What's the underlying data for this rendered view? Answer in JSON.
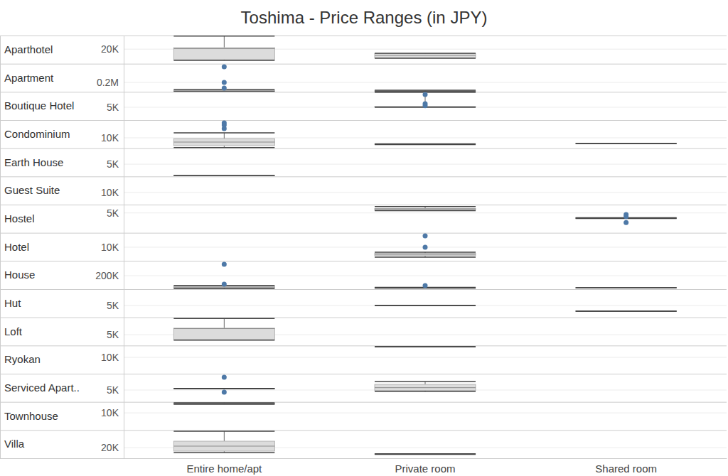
{
  "chart_data": {
    "type": "box",
    "title": "Toshima - Price Ranges (in JPY)",
    "categories": [
      "Entire home/apt",
      "Private room",
      "Shared room"
    ],
    "color": "#4e79a7",
    "grid": true,
    "panels": [
      {
        "name": "Aparthotel",
        "ylim": [
          4000,
          35000
        ],
        "yticks": [
          {
            "value": 20000,
            "label": "20K"
          }
        ],
        "boxes": [
          {
            "min": 7700,
            "q1": 8500,
            "median": 20500,
            "q3": 21700,
            "max": 34500
          },
          {
            "min": 10000,
            "q1": 10500,
            "median": 13100,
            "q3": 15000,
            "max": 15500
          },
          null
        ]
      },
      {
        "name": "Apartment",
        "ylim": [
          0,
          600000
        ],
        "yticks": [
          {
            "value": 200000,
            "label": "0.2M"
          }
        ],
        "boxes": [
          {
            "min": 8000,
            "q1": 15000,
            "median": 20000,
            "q3": 28000,
            "max": 55000,
            "outliers": [
              534000,
              201000,
              80000
            ]
          },
          {
            "min": 10000,
            "q1": 15000,
            "median": 18000,
            "q3": 22000,
            "max": 35000
          },
          null
        ]
      },
      {
        "name": "Boutique Hotel",
        "ylim": [
          0,
          11000
        ],
        "yticks": [
          {
            "value": 5000,
            "label": "5K"
          }
        ],
        "boxes": [
          null,
          {
            "min": 5000,
            "q1": 5100,
            "median": 5200,
            "q3": 5300,
            "max": 10800,
            "outliers": [
              9980,
              6400,
              5600
            ]
          },
          null
        ]
      },
      {
        "name": "Condominium",
        "ylim": [
          0,
          27000
        ],
        "yticks": [
          {
            "value": 10000,
            "label": "10K"
          }
        ],
        "boxes": [
          {
            "min": 600,
            "q1": 2500,
            "median": 5900,
            "q3": 9300,
            "max": 14800,
            "outliers": [
              24300,
              22300,
              18900
            ]
          },
          {
            "min": 3600,
            "q1": 3800,
            "median": 3900,
            "q3": 4000,
            "max": 4200
          },
          {
            "min": 4500,
            "q1": 4500,
            "median": 4500,
            "q3": 4500,
            "max": 4500
          }
        ]
      },
      {
        "name": "Earth House",
        "ylim": [
          0,
          11500
        ],
        "yticks": [
          {
            "value": 5000,
            "label": "5K"
          }
        ],
        "boxes": [
          {
            "min": 300,
            "q1": 300,
            "median": 300,
            "q3": 300,
            "max": 300
          },
          null,
          null
        ]
      },
      {
        "name": "Guest Suite",
        "ylim": [
          0,
          23000
        ],
        "yticks": [
          {
            "value": 10000,
            "label": "10K"
          }
        ],
        "boxes": [
          null,
          null,
          null
        ]
      },
      {
        "name": "Hostel",
        "ylim": [
          0,
          7100
        ],
        "yticks": [
          {
            "value": 5000,
            "label": "5K"
          }
        ],
        "boxes": [
          null,
          {
            "min": 5600,
            "q1": 5700,
            "median": 6000,
            "q3": 6100,
            "max": 6600
          },
          {
            "min": 3600,
            "q1": 3650,
            "median": 3700,
            "q3": 3750,
            "max": 3800,
            "outliers": [
              4600,
              4100,
              2600
            ]
          }
        ]
      },
      {
        "name": "Hotel",
        "ylim": [
          0,
          20500
        ],
        "yticks": [
          {
            "value": 10000,
            "label": "10K"
          }
        ],
        "boxes": [
          null,
          {
            "min": 2700,
            "q1": 3800,
            "median": 4800,
            "q3": 5600,
            "max": 6400,
            "outliers": [
              18200,
              10000
            ]
          },
          null
        ]
      },
      {
        "name": "House",
        "ylim": [
          0,
          418000
        ],
        "yticks": [
          {
            "value": 200000,
            "label": "200K"
          }
        ],
        "boxes": [
          {
            "min": 8000,
            "q1": 20000,
            "median": 30000,
            "q3": 42000,
            "max": 55000,
            "outliers": [
              369000,
              74000
            ]
          },
          {
            "min": 15000,
            "q1": 18000,
            "median": 20000,
            "q3": 22000,
            "max": 26000,
            "outliers": [
              52000
            ]
          },
          {
            "min": 20000,
            "q1": 20000,
            "median": 20000,
            "q3": 20000,
            "max": 20000
          }
        ]
      },
      {
        "name": "Hut",
        "ylim": [
          0,
          11900
        ],
        "yticks": [
          {
            "value": 5000,
            "label": "5K"
          }
        ],
        "boxes": [
          null,
          {
            "min": 5000,
            "q1": 5000,
            "median": 5000,
            "q3": 5000,
            "max": 5000
          },
          {
            "min": 2600,
            "q1": 2600,
            "median": 2600,
            "q3": 2600,
            "max": 2600
          }
        ]
      },
      {
        "name": "Loft",
        "ylim": [
          0,
          13000
        ],
        "yticks": [
          {
            "value": 5000,
            "label": "5K"
          }
        ],
        "boxes": [
          {
            "min": 2500,
            "q1": 2700,
            "median": 7800,
            "q3": 8000,
            "max": 12500
          },
          null,
          null
        ]
      },
      {
        "name": "Ryokan",
        "ylim": [
          0,
          17250
        ],
        "yticks": [
          {
            "value": 10000,
            "label": "10K"
          }
        ],
        "boxes": [
          null,
          {
            "min": 16500,
            "q1": 16500,
            "median": 16500,
            "q3": 16500,
            "max": 16500
          },
          null
        ]
      },
      {
        "name": "Serviced Apart..",
        "ylim": [
          0,
          11900
        ],
        "yticks": [
          {
            "value": 5000,
            "label": "5K"
          }
        ],
        "boxes": [
          {
            "min": 5500,
            "q1": 5550,
            "median": 5600,
            "q3": 5650,
            "max": 5700,
            "outliers": [
              10400,
              4100
            ]
          },
          {
            "min": 4400,
            "q1": 4800,
            "median": 6000,
            "q3": 7400,
            "max": 8600
          },
          null
        ]
      },
      {
        "name": "Townhouse",
        "ylim": [
          0,
          16400
        ],
        "yticks": [
          {
            "value": 10000,
            "label": "10K"
          }
        ],
        "boxes": [
          {
            "min": 15000,
            "q1": 15100,
            "median": 15400,
            "q3": 15600,
            "max": 15900
          },
          null,
          null
        ]
      },
      {
        "name": "Villa",
        "ylim": [
          0,
          52900
        ],
        "yticks": [
          {
            "value": 20000,
            "label": "20K"
          }
        ],
        "boxes": [
          {
            "min": 10700,
            "q1": 13300,
            "median": 22700,
            "q3": 32000,
            "max": 50700
          },
          {
            "min": 7500,
            "q1": 7700,
            "median": 8000,
            "q3": 8200,
            "max": 8400
          },
          null
        ]
      }
    ]
  }
}
